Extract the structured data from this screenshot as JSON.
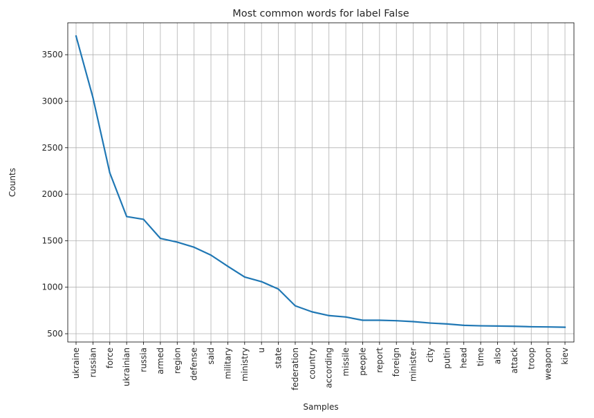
{
  "chart_data": {
    "type": "line",
    "title": "Most common words for label False",
    "xlabel": "Samples",
    "ylabel": "Counts",
    "categories": [
      "ukraine",
      "russian",
      "force",
      "ukrainian",
      "russia",
      "armed",
      "region",
      "defense",
      "said",
      "military",
      "ministry",
      "u",
      "state",
      "federation",
      "country",
      "according",
      "missile",
      "people",
      "report",
      "foreign",
      "minister",
      "city",
      "putin",
      "head",
      "time",
      "also",
      "attack",
      "troop",
      "weapon",
      "kiev"
    ],
    "values": [
      3700,
      3040,
      2230,
      1760,
      1730,
      1525,
      1485,
      1430,
      1345,
      1225,
      1110,
      1060,
      980,
      800,
      735,
      695,
      680,
      645,
      645,
      640,
      630,
      615,
      605,
      590,
      585,
      583,
      580,
      575,
      573,
      570
    ],
    "yticks": [
      500,
      1000,
      1500,
      2000,
      2500,
      3000,
      3500
    ],
    "ylim": [
      411,
      3843
    ],
    "grid": true,
    "line_color": "#1f77b4"
  }
}
